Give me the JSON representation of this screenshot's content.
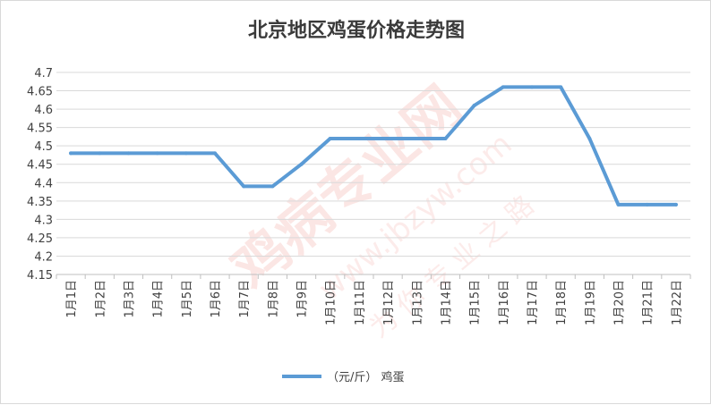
{
  "chart_data": {
    "type": "line",
    "title": "北京地区鸡蛋价格走势图",
    "categories": [
      "1月1日",
      "1月2日",
      "1月3日",
      "1月4日",
      "1月5日",
      "1月6日",
      "1月7日",
      "1月8日",
      "1月9日",
      "1月10日",
      "1月11日",
      "1月12日",
      "1月13日",
      "1月14日",
      "1月15日",
      "1月16日",
      "1月17日",
      "1月18日",
      "1月19日",
      "1月20日",
      "1月21日",
      "1月22日"
    ],
    "series": [
      {
        "name": "（元/斤） 鸡蛋",
        "color": "#5b9bd5",
        "values": [
          4.48,
          4.48,
          4.48,
          4.48,
          4.48,
          4.48,
          4.39,
          4.39,
          4.45,
          4.52,
          4.52,
          4.52,
          4.52,
          4.52,
          4.61,
          4.66,
          4.66,
          4.66,
          4.52,
          4.34,
          4.34,
          4.34
        ]
      }
    ],
    "ylim": [
      4.15,
      4.7
    ],
    "ytick_labels": [
      "4.15",
      "4.2",
      "4.25",
      "4.3",
      "4.35",
      "4.4",
      "4.45",
      "4.5",
      "4.55",
      "4.6",
      "4.65",
      "4.7"
    ],
    "grid": true,
    "legend": "bottom",
    "xlabel": "",
    "ylabel": ""
  },
  "watermark": {
    "brand": "鸡病专业网",
    "url": "www.jbzyw.com",
    "slogan": "为 你 专 业 之 路"
  }
}
